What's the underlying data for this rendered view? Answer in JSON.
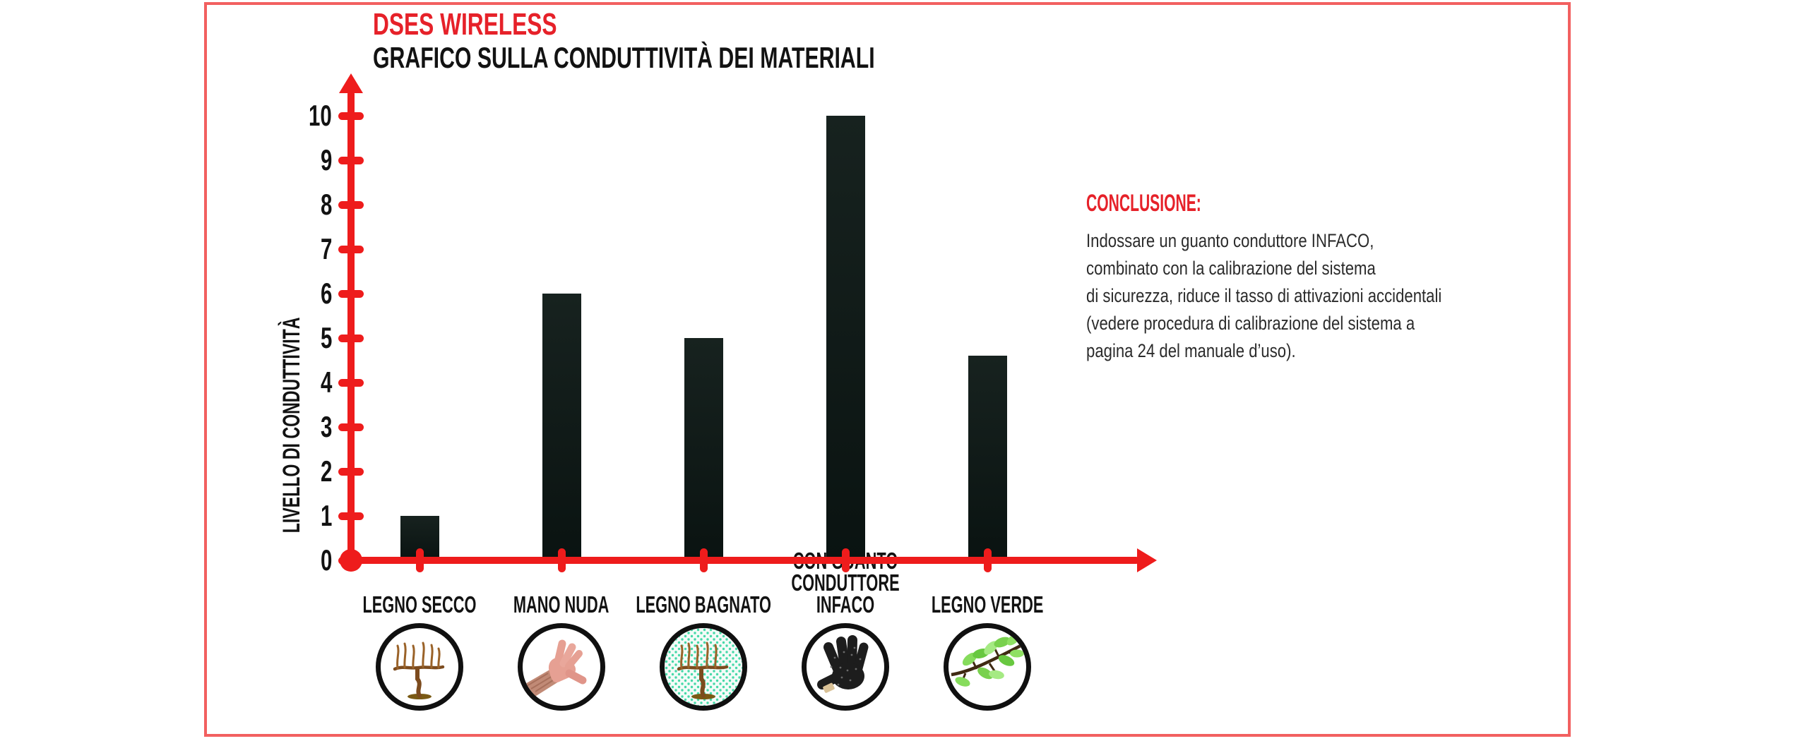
{
  "header": {
    "title": "DSES WIRELESS",
    "subtitle": "GRAFICO SULLA CONDUTTIVITÀ DEI MATERIALI"
  },
  "chart_data": {
    "type": "bar",
    "title": "GRAFICO SULLA CONDUTTIVITÀ DEI MATERIALI",
    "ylabel": "LIVELLO DI CONDUTTIVITÀ",
    "xlabel": "",
    "ylim": [
      0,
      10
    ],
    "yticks": [
      0,
      1,
      2,
      3,
      4,
      5,
      6,
      7,
      8,
      9,
      10
    ],
    "grid": false,
    "legend": "none",
    "categories": [
      "LEGNO SECCO",
      "MANO NUDA",
      "LEGNO BAGNATO",
      "CON GUANTO\nCONDUTTORE INFACO",
      "LEGNO VERDE"
    ],
    "values": [
      1,
      6,
      5,
      10,
      4.6
    ],
    "category_icons": [
      "dry-vine-branch",
      "bare-hand",
      "wet-vine-branch",
      "black-conductive-glove",
      "green-leafy-branch"
    ],
    "colors": {
      "bar": "#101c19",
      "axis": "#ee1c1c",
      "accent_red": "#e62129",
      "frame_border": "#f26060",
      "text": "#121212"
    }
  },
  "conclusion": {
    "heading": "CONCLUSIONE:",
    "body": "Indossare un guanto conduttore INFACO,\ncombinato con la calibrazione del sistema\ndi sicurezza, riduce il tasso di attivazioni accidentali\n(vedere procedura di calibrazione del sistema a\npagina 24 del manuale d’uso)."
  }
}
